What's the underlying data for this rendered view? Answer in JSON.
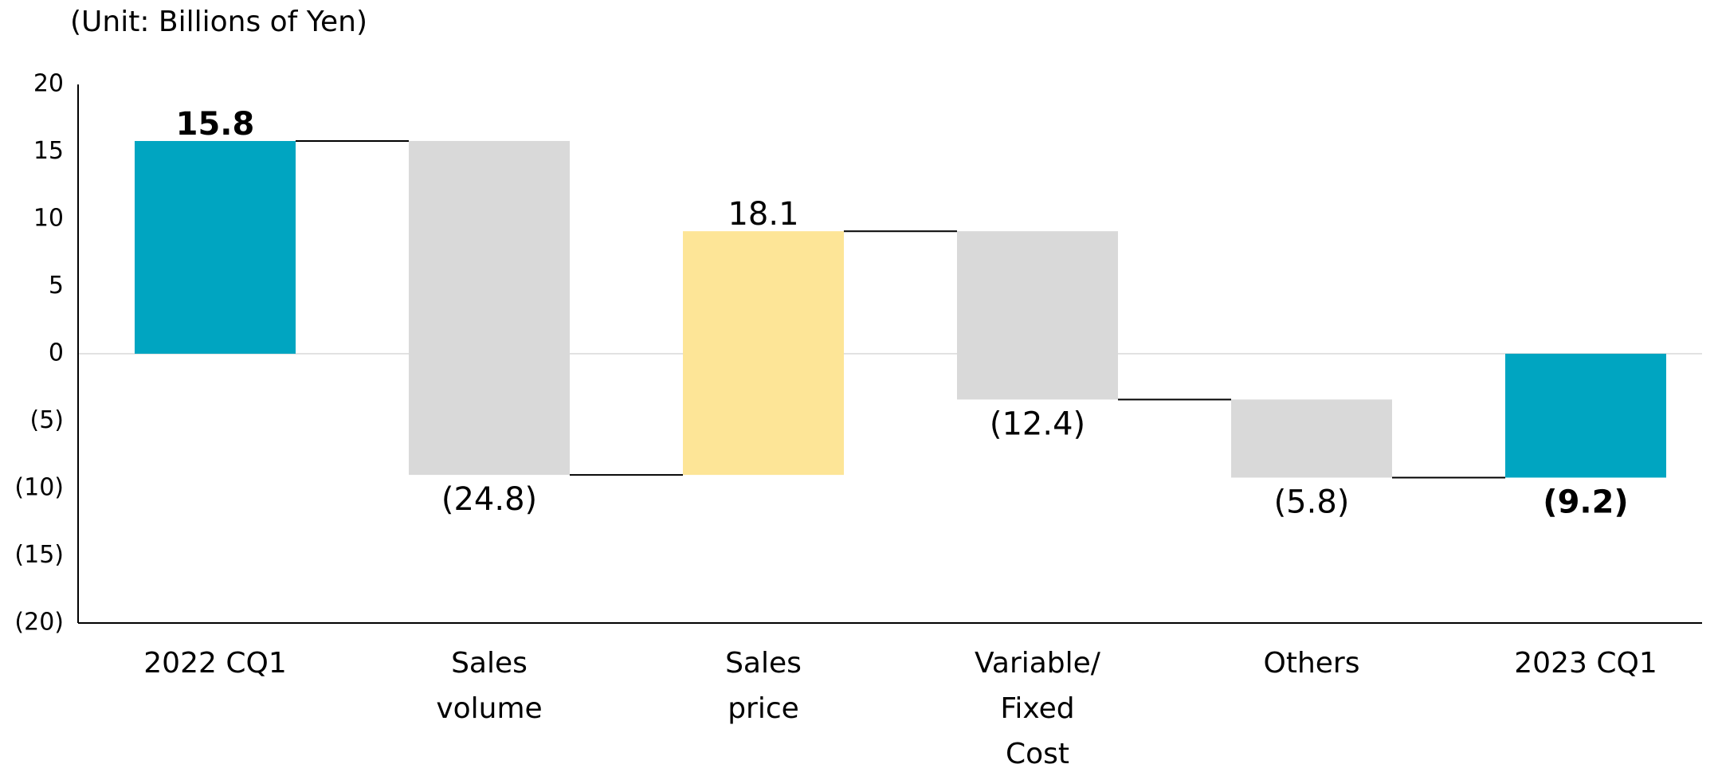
{
  "unit_label": "(Unit: Billions of Yen)",
  "colors": {
    "total": "#00A5C1",
    "decrease": "#D9D9D9",
    "increase": "#FDE597",
    "axis": "#000000",
    "zero_line": "#E2E2E2",
    "connector": "#000000"
  },
  "chart_data": {
    "type": "bar",
    "subtype": "waterfall",
    "title": "",
    "xlabel": "",
    "ylabel": "",
    "ylim": [
      -20,
      20
    ],
    "yticks": [
      20,
      15,
      10,
      5,
      0,
      -5,
      -10,
      -15,
      -20
    ],
    "ytick_labels": [
      "20",
      "15",
      "10",
      "5",
      "0",
      "(5)",
      "(10)",
      "(15)",
      "(20)"
    ],
    "grid": false,
    "legend": "none",
    "categories": [
      "2022 CQ1",
      "Sales volume",
      "Sales price",
      "Variable/ Fixed Cost",
      "Others",
      "2023 CQ1"
    ],
    "category_lines": [
      [
        "2022 CQ1"
      ],
      [
        "Sales",
        "volume"
      ],
      [
        "Sales",
        "price"
      ],
      [
        "Variable/",
        "Fixed",
        "Cost"
      ],
      [
        "Others"
      ],
      [
        "2023 CQ1"
      ]
    ],
    "bars": [
      {
        "category": "2022 CQ1",
        "kind": "total",
        "start": 0,
        "end": 15.8,
        "label": "15.8",
        "bold": true
      },
      {
        "category": "Sales volume",
        "kind": "decrease",
        "start": 15.8,
        "end": -9.0,
        "label": "(24.8)",
        "bold": false
      },
      {
        "category": "Sales price",
        "kind": "increase",
        "start": -9.0,
        "end": 9.1,
        "label": "18.1",
        "bold": false
      },
      {
        "category": "Variable/ Fixed Cost",
        "kind": "decrease",
        "start": 9.1,
        "end": -3.4,
        "label": "(12.4)",
        "bold": false
      },
      {
        "category": "Others",
        "kind": "decrease",
        "start": -3.4,
        "end": -9.2,
        "label": "(5.8)",
        "bold": false
      },
      {
        "category": "2023 CQ1",
        "kind": "total",
        "start": 0,
        "end": -9.2,
        "label": "(9.2)",
        "bold": true
      }
    ]
  }
}
